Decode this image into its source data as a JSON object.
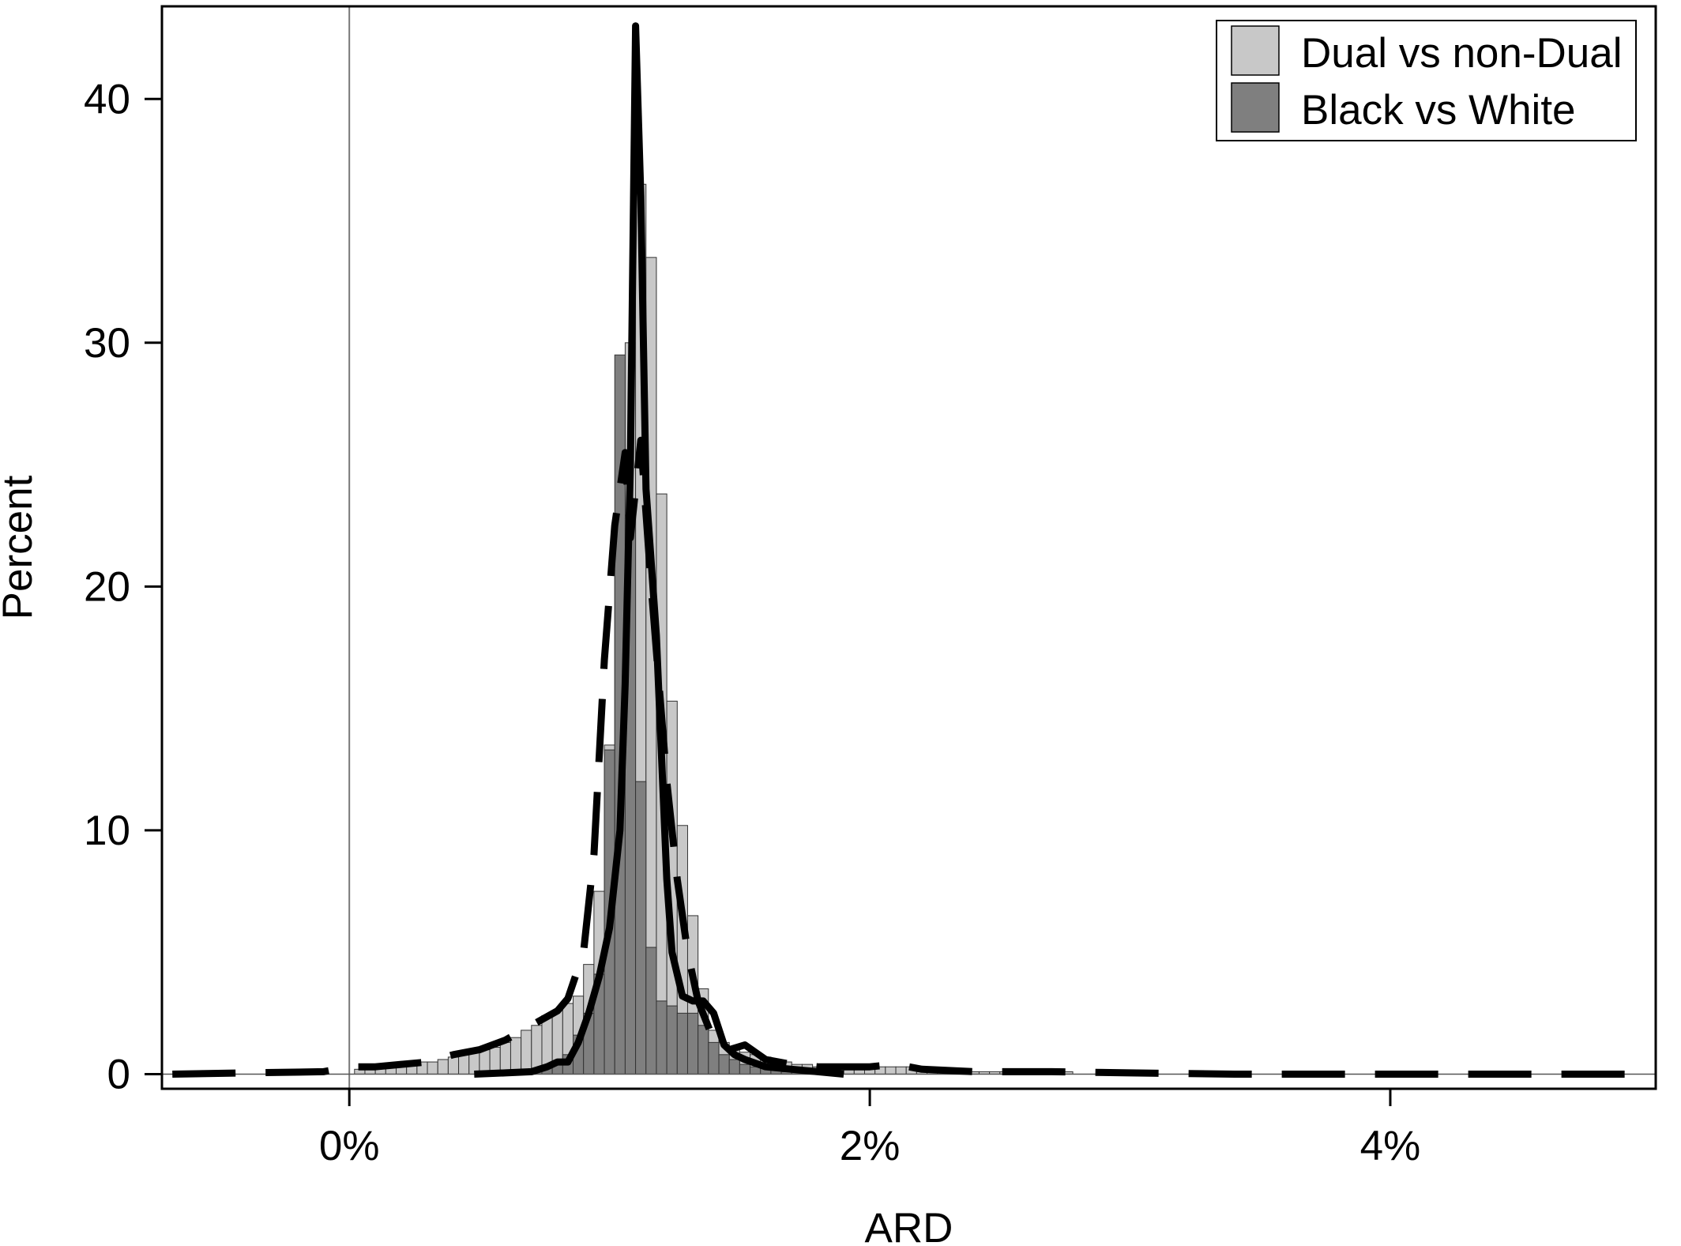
{
  "chart_data": {
    "type": "bar",
    "title": "",
    "xlabel": "ARD",
    "ylabel": "Percent",
    "xlim": [
      -0.72,
      5.02
    ],
    "ylim": [
      -0.6,
      43.8
    ],
    "bin_width": 0.04,
    "x_ticks": [
      0,
      2,
      4
    ],
    "x_tick_labels": [
      "0%",
      "2%",
      "4%"
    ],
    "y_ticks": [
      0,
      10,
      20,
      30,
      40
    ],
    "y_tick_labels": [
      "0",
      "10",
      "20",
      "30",
      "40"
    ],
    "reference_line_x": 0,
    "legend": {
      "position": "top-right",
      "entries": [
        {
          "label": "Dual vs non-Dual",
          "color": "#c8c8c8"
        },
        {
          "label": "Black vs White",
          "color": "#7f7f7f"
        }
      ]
    },
    "series": [
      {
        "name": "Dual vs non-Dual",
        "color": "#c8c8c8",
        "histogram": [
          [
            -0.58,
            0.1
          ],
          [
            0.02,
            0.2
          ],
          [
            0.06,
            0.3
          ],
          [
            0.1,
            0.3
          ],
          [
            0.14,
            0.3
          ],
          [
            0.18,
            0.4
          ],
          [
            0.22,
            0.4
          ],
          [
            0.26,
            0.5
          ],
          [
            0.3,
            0.5
          ],
          [
            0.34,
            0.6
          ],
          [
            0.38,
            0.7
          ],
          [
            0.42,
            0.9
          ],
          [
            0.46,
            0.9
          ],
          [
            0.5,
            1.0
          ],
          [
            0.54,
            1.1
          ],
          [
            0.58,
            1.3
          ],
          [
            0.62,
            1.5
          ],
          [
            0.66,
            1.8
          ],
          [
            0.7,
            2.0
          ],
          [
            0.74,
            2.4
          ],
          [
            0.78,
            2.6
          ],
          [
            0.82,
            2.9
          ],
          [
            0.86,
            3.2
          ],
          [
            0.9,
            4.5
          ],
          [
            0.94,
            7.5
          ],
          [
            0.98,
            13.5
          ],
          [
            1.02,
            22.8
          ],
          [
            1.06,
            30.0
          ],
          [
            1.1,
            36.5
          ],
          [
            1.14,
            33.5
          ],
          [
            1.18,
            23.8
          ],
          [
            1.22,
            15.3
          ],
          [
            1.26,
            10.2
          ],
          [
            1.3,
            6.5
          ],
          [
            1.34,
            3.5
          ],
          [
            1.38,
            1.8
          ],
          [
            1.42,
            1.3
          ],
          [
            1.46,
            1.1
          ],
          [
            1.5,
            0.9
          ],
          [
            1.54,
            0.8
          ],
          [
            1.58,
            0.7
          ],
          [
            1.62,
            0.6
          ],
          [
            1.66,
            0.5
          ],
          [
            1.7,
            0.4
          ],
          [
            1.74,
            0.4
          ],
          [
            1.78,
            0.3
          ],
          [
            1.82,
            0.3
          ],
          [
            1.86,
            0.3
          ],
          [
            1.9,
            0.3
          ],
          [
            1.94,
            0.3
          ],
          [
            1.98,
            0.3
          ],
          [
            2.02,
            0.3
          ],
          [
            2.06,
            0.3
          ],
          [
            2.1,
            0.3
          ],
          [
            2.14,
            0.3
          ],
          [
            2.18,
            0.2
          ],
          [
            2.22,
            0.2
          ],
          [
            2.26,
            0.1
          ],
          [
            2.3,
            0.1
          ],
          [
            2.34,
            0.1
          ],
          [
            2.38,
            0.1
          ],
          [
            2.42,
            0.1
          ],
          [
            2.46,
            0.1
          ],
          [
            2.5,
            0.1
          ],
          [
            2.54,
            0.1
          ],
          [
            2.58,
            0.1
          ],
          [
            2.62,
            0.1
          ],
          [
            2.66,
            0.1
          ],
          [
            2.7,
            0.1
          ],
          [
            2.74,
            0.1
          ]
        ],
        "curve": [
          [
            -0.68,
            0.0
          ],
          [
            -0.4,
            0.05
          ],
          [
            -0.1,
            0.1
          ],
          [
            0.0,
            0.3
          ],
          [
            0.1,
            0.3
          ],
          [
            0.2,
            0.4
          ],
          [
            0.3,
            0.5
          ],
          [
            0.4,
            0.8
          ],
          [
            0.5,
            1.0
          ],
          [
            0.6,
            1.4
          ],
          [
            0.7,
            2.0
          ],
          [
            0.8,
            2.6
          ],
          [
            0.84,
            3.1
          ],
          [
            0.9,
            5.0
          ],
          [
            0.94,
            9.0
          ],
          [
            0.98,
            17.0
          ],
          [
            1.02,
            22.5
          ],
          [
            1.06,
            25.5
          ],
          [
            1.08,
            22.0
          ],
          [
            1.12,
            26.0
          ],
          [
            1.16,
            20.0
          ],
          [
            1.22,
            12.0
          ],
          [
            1.26,
            8.0
          ],
          [
            1.3,
            5.0
          ],
          [
            1.34,
            3.0
          ],
          [
            1.4,
            1.4
          ],
          [
            1.46,
            1.0
          ],
          [
            1.52,
            1.2
          ],
          [
            1.6,
            0.6
          ],
          [
            1.7,
            0.4
          ],
          [
            1.8,
            0.3
          ],
          [
            1.9,
            0.3
          ],
          [
            2.0,
            0.3
          ],
          [
            2.1,
            0.4
          ],
          [
            2.2,
            0.2
          ],
          [
            2.4,
            0.1
          ],
          [
            2.7,
            0.1
          ],
          [
            3.0,
            0.05
          ],
          [
            3.4,
            0.0
          ],
          [
            4.0,
            0.0
          ],
          [
            4.6,
            0.0
          ],
          [
            5.0,
            0.0
          ]
        ]
      },
      {
        "name": "Black vs White",
        "color": "#7f7f7f",
        "histogram": [
          [
            0.66,
            0.1
          ],
          [
            0.7,
            0.2
          ],
          [
            0.74,
            0.3
          ],
          [
            0.78,
            0.5
          ],
          [
            0.82,
            0.8
          ],
          [
            0.86,
            1.6
          ],
          [
            0.9,
            2.5
          ],
          [
            0.94,
            4.1
          ],
          [
            0.98,
            13.3
          ],
          [
            1.02,
            29.5
          ],
          [
            1.06,
            22.8
          ],
          [
            1.1,
            12.0
          ],
          [
            1.14,
            5.2
          ],
          [
            1.18,
            3.0
          ],
          [
            1.22,
            2.8
          ],
          [
            1.26,
            2.5
          ],
          [
            1.3,
            2.5
          ],
          [
            1.34,
            2.0
          ],
          [
            1.38,
            1.3
          ],
          [
            1.42,
            0.8
          ],
          [
            1.46,
            0.6
          ],
          [
            1.5,
            0.4
          ],
          [
            1.54,
            0.3
          ],
          [
            1.58,
            0.3
          ],
          [
            1.62,
            0.2
          ],
          [
            1.66,
            0.1
          ],
          [
            1.7,
            0.1
          ],
          [
            1.74,
            0.1
          ]
        ],
        "curve": [
          [
            0.48,
            0.0
          ],
          [
            0.6,
            0.05
          ],
          [
            0.7,
            0.1
          ],
          [
            0.76,
            0.3
          ],
          [
            0.8,
            0.5
          ],
          [
            0.84,
            0.5
          ],
          [
            0.88,
            1.3
          ],
          [
            0.92,
            2.5
          ],
          [
            0.96,
            4.0
          ],
          [
            1.0,
            6.0
          ],
          [
            1.04,
            10.0
          ],
          [
            1.06,
            16.0
          ],
          [
            1.08,
            25.0
          ],
          [
            1.1,
            43.0
          ],
          [
            1.12,
            36.0
          ],
          [
            1.14,
            24.0
          ],
          [
            1.18,
            18.0
          ],
          [
            1.2,
            13.0
          ],
          [
            1.22,
            8.0
          ],
          [
            1.24,
            5.0
          ],
          [
            1.28,
            3.2
          ],
          [
            1.32,
            3.0
          ],
          [
            1.36,
            3.0
          ],
          [
            1.4,
            2.5
          ],
          [
            1.44,
            1.2
          ],
          [
            1.48,
            0.8
          ],
          [
            1.52,
            0.6
          ],
          [
            1.6,
            0.3
          ],
          [
            1.7,
            0.2
          ],
          [
            1.8,
            0.1
          ],
          [
            1.9,
            0.0
          ]
        ]
      }
    ]
  }
}
